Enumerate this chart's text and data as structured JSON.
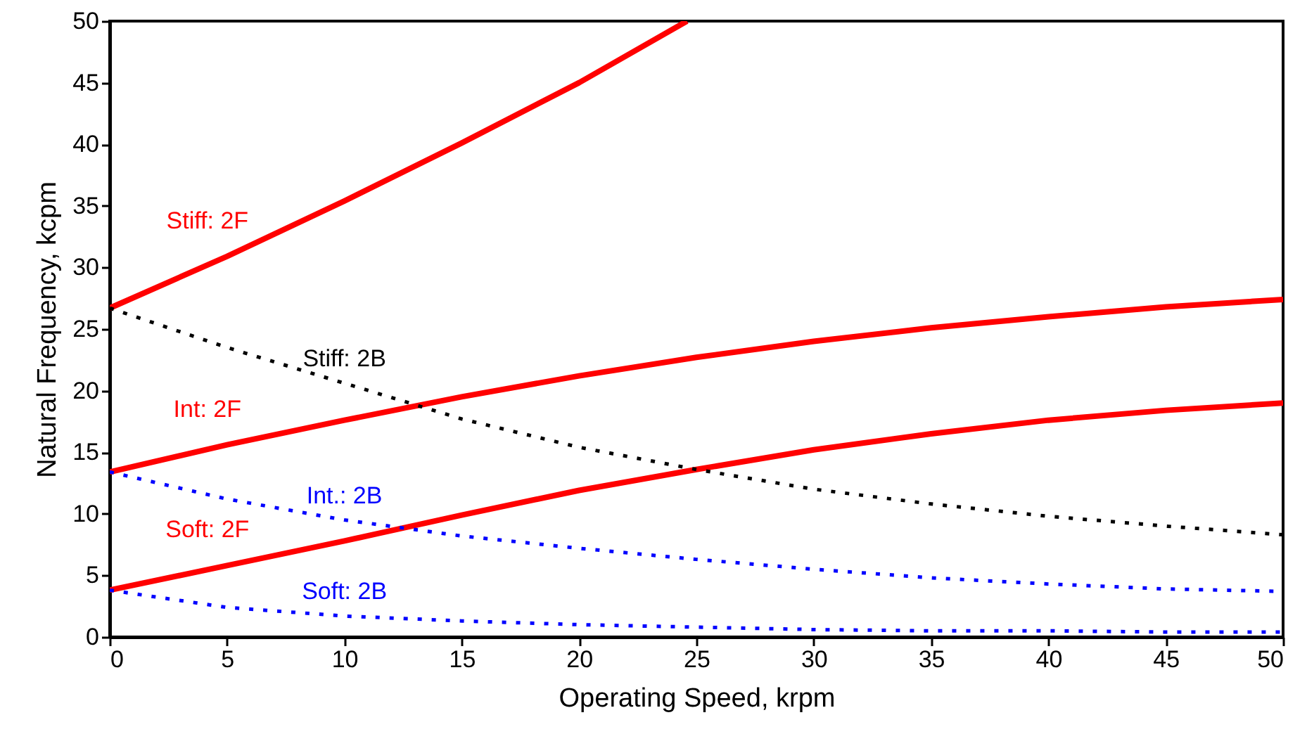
{
  "chart_data": {
    "type": "line",
    "xlabel": "Operating Speed, krpm",
    "ylabel": "Natural Frequency, kcpm",
    "x": [
      0,
      5,
      10,
      15,
      20,
      25,
      30,
      35,
      40,
      45,
      50
    ],
    "xlim": [
      0,
      50
    ],
    "xticks": [
      0,
      5,
      10,
      15,
      20,
      25,
      30,
      35,
      40,
      45,
      50
    ],
    "ylim": [
      0,
      50
    ],
    "yticks": [
      0,
      5,
      10,
      15,
      20,
      25,
      30,
      35,
      40,
      45,
      50
    ],
    "grid": false,
    "marker": "none",
    "series": [
      {
        "name": "Stiff: 2F",
        "color": "#ff0000",
        "line_style": "solid",
        "x": [
          0,
          5,
          10,
          15,
          20,
          24.6
        ],
        "values": [
          26.7,
          30.9,
          35.4,
          40.1,
          45.0,
          50
        ]
      },
      {
        "name": "Int: 2F",
        "color": "#ff0000",
        "line_style": "solid",
        "values": [
          13.4,
          15.6,
          17.6,
          19.5,
          21.2,
          22.7,
          24.0,
          25.1,
          26.0,
          26.8,
          27.4
        ]
      },
      {
        "name": "Soft: 2F",
        "color": "#ff0000",
        "line_style": "solid",
        "values": [
          3.8,
          5.8,
          7.8,
          9.9,
          11.9,
          13.6,
          15.2,
          16.5,
          17.6,
          18.4,
          19.0
        ]
      },
      {
        "name": "Stiff: 2B",
        "color": "#000000",
        "line_style": "dotted",
        "values": [
          26.7,
          23.5,
          20.6,
          17.7,
          15.4,
          13.6,
          12.0,
          10.8,
          9.8,
          9.0,
          8.3
        ]
      },
      {
        "name": "Int.: 2B",
        "color": "#0000ff",
        "line_style": "dotted",
        "values": [
          13.4,
          11.2,
          9.5,
          8.2,
          7.2,
          6.3,
          5.5,
          4.8,
          4.3,
          3.9,
          3.7
        ]
      },
      {
        "name": "Soft: 2B",
        "color": "#0000ff",
        "line_style": "dotted",
        "values": [
          3.8,
          2.4,
          1.7,
          1.3,
          1.0,
          0.8,
          0.6,
          0.5,
          0.5,
          0.4,
          0.4
        ]
      }
    ]
  }
}
